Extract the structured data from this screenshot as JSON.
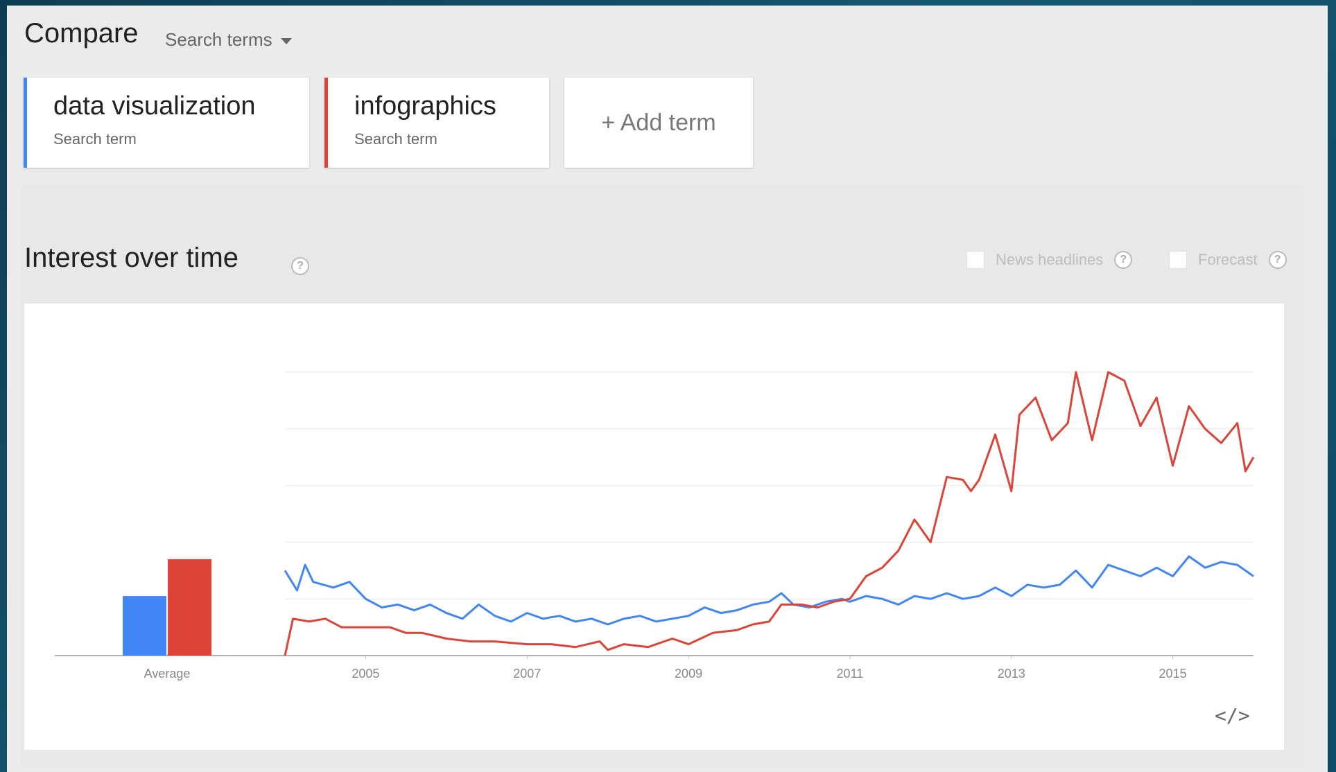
{
  "header": {
    "title": "Compare",
    "mode_dropdown": "Search terms"
  },
  "terms": [
    {
      "name": "data visualization",
      "sub": "Search term",
      "color": "#4285f4"
    },
    {
      "name": "infographics",
      "sub": "Search term",
      "color": "#db4437"
    }
  ],
  "add_term": "+ Add term",
  "section": {
    "title": "Interest over time",
    "help": "?",
    "options": [
      {
        "label": "News headlines",
        "checked": false
      },
      {
        "label": "Forecast",
        "checked": false
      }
    ]
  },
  "embed_label": "</>",
  "chart_data": {
    "type": "line",
    "x_ticks": [
      "2005",
      "2007",
      "2009",
      "2011",
      "2013",
      "2015"
    ],
    "x_range": [
      2004.0,
      2016.0
    ],
    "ylim": [
      0,
      100
    ],
    "grid": true,
    "average": {
      "label": "Average",
      "values": [
        {
          "name": "data visualization",
          "value": 21,
          "color": "#4285f4"
        },
        {
          "name": "infographics",
          "value": 34,
          "color": "#db4437"
        }
      ]
    },
    "series": [
      {
        "name": "data visualization",
        "color": "#4285f4",
        "points": [
          [
            2004.0,
            30
          ],
          [
            2004.15,
            23
          ],
          [
            2004.25,
            32
          ],
          [
            2004.35,
            26
          ],
          [
            2004.6,
            24
          ],
          [
            2004.8,
            26
          ],
          [
            2005.0,
            20
          ],
          [
            2005.2,
            17
          ],
          [
            2005.4,
            18
          ],
          [
            2005.6,
            16
          ],
          [
            2005.8,
            18
          ],
          [
            2006.0,
            15
          ],
          [
            2006.2,
            13
          ],
          [
            2006.4,
            18
          ],
          [
            2006.6,
            14
          ],
          [
            2006.8,
            12
          ],
          [
            2007.0,
            15
          ],
          [
            2007.2,
            13
          ],
          [
            2007.4,
            14
          ],
          [
            2007.6,
            12
          ],
          [
            2007.8,
            13
          ],
          [
            2008.0,
            11
          ],
          [
            2008.2,
            13
          ],
          [
            2008.4,
            14
          ],
          [
            2008.6,
            12
          ],
          [
            2008.8,
            13
          ],
          [
            2009.0,
            14
          ],
          [
            2009.2,
            17
          ],
          [
            2009.4,
            15
          ],
          [
            2009.6,
            16
          ],
          [
            2009.8,
            18
          ],
          [
            2010.0,
            19
          ],
          [
            2010.15,
            22
          ],
          [
            2010.3,
            18
          ],
          [
            2010.5,
            17
          ],
          [
            2010.7,
            19
          ],
          [
            2010.9,
            20
          ],
          [
            2011.0,
            19
          ],
          [
            2011.2,
            21
          ],
          [
            2011.4,
            20
          ],
          [
            2011.6,
            18
          ],
          [
            2011.8,
            21
          ],
          [
            2012.0,
            20
          ],
          [
            2012.2,
            22
          ],
          [
            2012.4,
            20
          ],
          [
            2012.6,
            21
          ],
          [
            2012.8,
            24
          ],
          [
            2013.0,
            21
          ],
          [
            2013.2,
            25
          ],
          [
            2013.4,
            24
          ],
          [
            2013.6,
            25
          ],
          [
            2013.8,
            30
          ],
          [
            2014.0,
            24
          ],
          [
            2014.2,
            32
          ],
          [
            2014.4,
            30
          ],
          [
            2014.6,
            28
          ],
          [
            2014.8,
            31
          ],
          [
            2015.0,
            28
          ],
          [
            2015.2,
            35
          ],
          [
            2015.4,
            31
          ],
          [
            2015.6,
            33
          ],
          [
            2015.8,
            32
          ],
          [
            2016.0,
            28
          ]
        ]
      },
      {
        "name": "infographics",
        "color": "#db4437",
        "points": [
          [
            2004.0,
            0
          ],
          [
            2004.1,
            13
          ],
          [
            2004.3,
            12
          ],
          [
            2004.5,
            13
          ],
          [
            2004.7,
            10
          ],
          [
            2005.0,
            10
          ],
          [
            2005.3,
            10
          ],
          [
            2005.5,
            8
          ],
          [
            2005.7,
            8
          ],
          [
            2006.0,
            6
          ],
          [
            2006.3,
            5
          ],
          [
            2006.6,
            5
          ],
          [
            2007.0,
            4
          ],
          [
            2007.3,
            4
          ],
          [
            2007.6,
            3
          ],
          [
            2007.9,
            5
          ],
          [
            2008.0,
            2
          ],
          [
            2008.2,
            4
          ],
          [
            2008.5,
            3
          ],
          [
            2008.8,
            6
          ],
          [
            2009.0,
            4
          ],
          [
            2009.3,
            8
          ],
          [
            2009.6,
            9
          ],
          [
            2009.8,
            11
          ],
          [
            2010.0,
            12
          ],
          [
            2010.15,
            18
          ],
          [
            2010.4,
            18
          ],
          [
            2010.6,
            17
          ],
          [
            2010.8,
            19
          ],
          [
            2011.0,
            20
          ],
          [
            2011.2,
            28
          ],
          [
            2011.4,
            31
          ],
          [
            2011.6,
            37
          ],
          [
            2011.8,
            48
          ],
          [
            2012.0,
            40
          ],
          [
            2012.2,
            63
          ],
          [
            2012.4,
            62
          ],
          [
            2012.5,
            58
          ],
          [
            2012.6,
            62
          ],
          [
            2012.8,
            78
          ],
          [
            2013.0,
            58
          ],
          [
            2013.1,
            85
          ],
          [
            2013.3,
            91
          ],
          [
            2013.5,
            76
          ],
          [
            2013.7,
            82
          ],
          [
            2013.8,
            100
          ],
          [
            2014.0,
            76
          ],
          [
            2014.2,
            100
          ],
          [
            2014.4,
            97
          ],
          [
            2014.6,
            81
          ],
          [
            2014.8,
            91
          ],
          [
            2015.0,
            67
          ],
          [
            2015.2,
            88
          ],
          [
            2015.4,
            80
          ],
          [
            2015.6,
            75
          ],
          [
            2015.8,
            82
          ],
          [
            2015.9,
            65
          ],
          [
            2016.0,
            70
          ]
        ]
      }
    ]
  }
}
